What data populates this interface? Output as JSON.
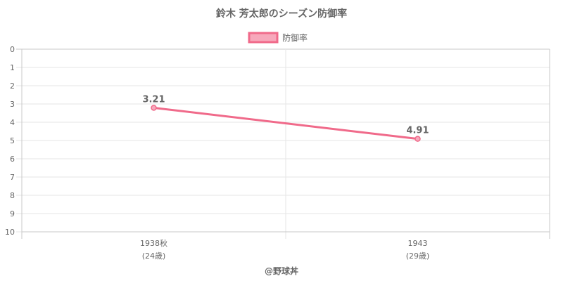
{
  "chart_data": {
    "type": "line",
    "title": "鈴木 芳太郎のシーズン防御率",
    "legend": {
      "label": "防御率",
      "position": "top"
    },
    "x": [
      {
        "label": "1938秋",
        "age": "(24歳)"
      },
      {
        "label": "1943",
        "age": "(29歳)"
      }
    ],
    "series": [
      {
        "name": "防御率",
        "values": [
          3.21,
          4.91
        ],
        "data_labels": [
          "3.21",
          "4.91"
        ],
        "color": "#f06a8a"
      }
    ],
    "y": {
      "reversed": true,
      "min": 0,
      "max": 10,
      "ticks": [
        "0",
        "1",
        "2",
        "3",
        "4",
        "5",
        "6",
        "7",
        "8",
        "9",
        "10"
      ]
    },
    "grid": true,
    "credit": "@野球丼",
    "colors": {
      "line": "#f06a8a",
      "fill": "#f7a8bb",
      "grid": "#e6e6e6",
      "axis": "#c8c8c8",
      "text": "#666666"
    }
  }
}
